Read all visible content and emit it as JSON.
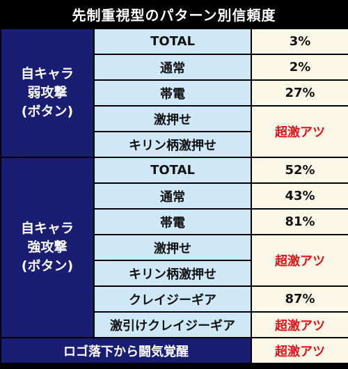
{
  "title": "先制重視型のパターン別信頼度",
  "groups": [
    {
      "label_lines": [
        "自キャラ",
        "弱攻撃",
        "(ボタン)"
      ],
      "rows": [
        {
          "label": "TOTAL",
          "value": "3%"
        },
        {
          "label": "通常",
          "value": "2%"
        },
        {
          "label": "帯電",
          "value": "27%"
        },
        {
          "label": "激押せ"
        },
        {
          "label": "キリン柄激押せ"
        }
      ],
      "merged_value": "超激アツ"
    },
    {
      "label_lines": [
        "自キャラ",
        "強攻撃",
        "(ボタン)"
      ],
      "rows": [
        {
          "label": "TOTAL",
          "value": "52%"
        },
        {
          "label": "通常",
          "value": "43%"
        },
        {
          "label": "帯電",
          "value": "81%"
        },
        {
          "label": "激押せ"
        },
        {
          "label": "キリン柄激押せ"
        },
        {
          "label": "クレイジーギア",
          "value": "87%"
        },
        {
          "label": "激引けクレイジーギア",
          "value": "超激アツ"
        }
      ],
      "merged_value": "超激アツ"
    }
  ],
  "footer": {
    "label": "ロゴ落下から闘気覚醒",
    "value": "超激アツ"
  },
  "colors": {
    "group_bg": "#1a1e73",
    "label_bg": "#cfe8f8",
    "value_bg": "#fbf8e8",
    "hot_text": "#e0141a"
  }
}
